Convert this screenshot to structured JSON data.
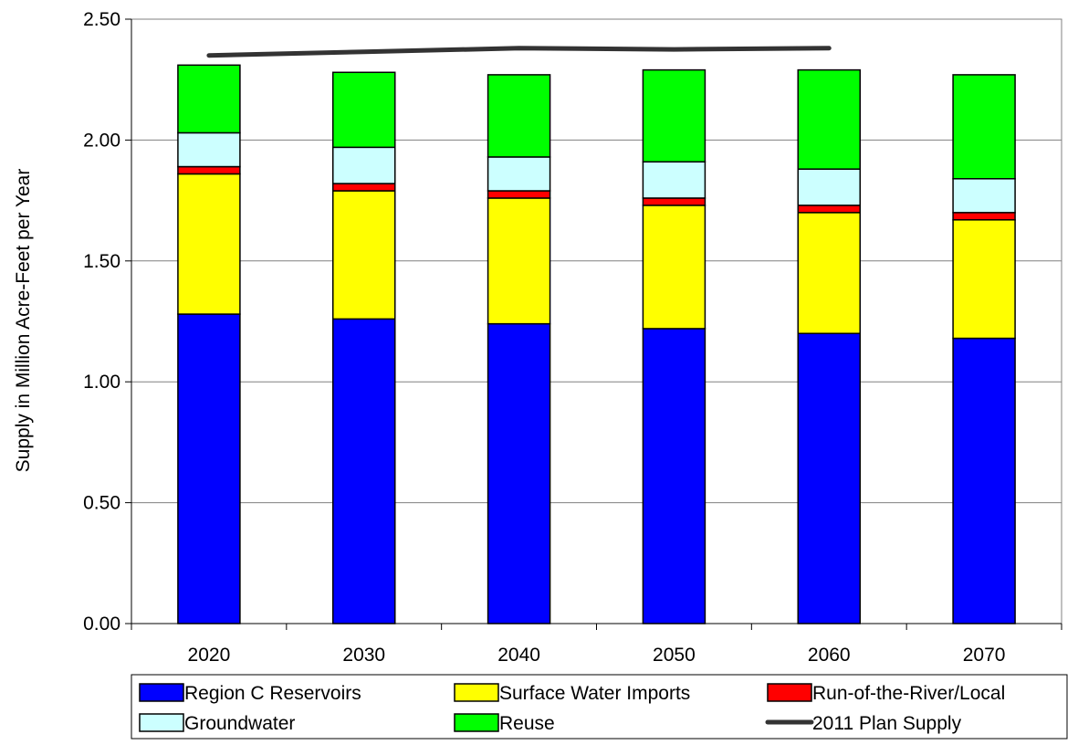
{
  "chart_data": {
    "type": "bar",
    "stacked": true,
    "categories": [
      "2020",
      "2030",
      "2040",
      "2050",
      "2060",
      "2070"
    ],
    "series": [
      {
        "name": "Region C Reservoirs",
        "color": "#0000FF",
        "values": [
          1.28,
          1.26,
          1.24,
          1.22,
          1.2,
          1.18
        ]
      },
      {
        "name": "Surface Water Imports",
        "color": "#FFFF00",
        "values": [
          0.58,
          0.53,
          0.52,
          0.51,
          0.5,
          0.49
        ]
      },
      {
        "name": "Run-of-the-River/Local",
        "color": "#FF0000",
        "values": [
          0.03,
          0.03,
          0.03,
          0.03,
          0.03,
          0.03
        ]
      },
      {
        "name": "Groundwater",
        "color": "#CCFFFF",
        "values": [
          0.14,
          0.15,
          0.14,
          0.15,
          0.15,
          0.14
        ]
      },
      {
        "name": "Reuse",
        "color": "#00FF00",
        "values": [
          0.28,
          0.31,
          0.34,
          0.38,
          0.41,
          0.43
        ]
      }
    ],
    "line_series": {
      "name": "2011 Plan Supply",
      "color": "#333333",
      "categories": [
        "2020",
        "2030",
        "2040",
        "2050",
        "2060"
      ],
      "values": [
        2.35,
        2.365,
        2.38,
        2.375,
        2.38
      ]
    },
    "title": "",
    "xlabel": "",
    "ylabel": "Supply in Million Acre-Feet per Year",
    "ylim": [
      0,
      2.5
    ],
    "yticks": [
      "0.00",
      "0.50",
      "1.00",
      "1.50",
      "2.00",
      "2.50"
    ],
    "grid": true,
    "legend_position": "bottom"
  }
}
